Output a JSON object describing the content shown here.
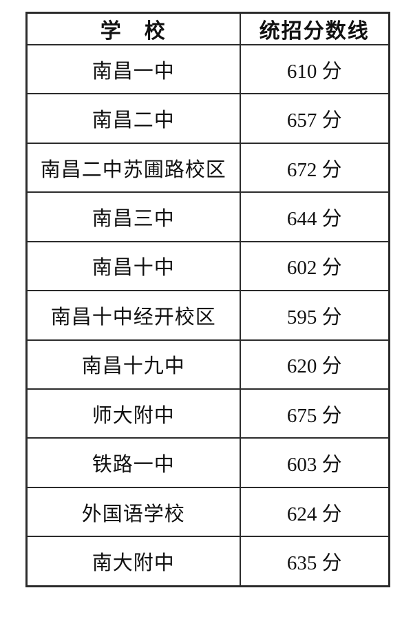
{
  "page": {
    "background_color": "#ffffff",
    "text_color": "#111111",
    "border_color": "#2b2b2b"
  },
  "chart_data": {
    "type": "table",
    "title": "",
    "columns": [
      "学　校",
      "统招分数线"
    ],
    "rows": [
      {
        "school": "南昌一中",
        "score_label": "610 分",
        "score": 610
      },
      {
        "school": "南昌二中",
        "score_label": "657 分",
        "score": 657
      },
      {
        "school": "南昌二中苏圃路校区",
        "score_label": "672 分",
        "score": 672
      },
      {
        "school": "南昌三中",
        "score_label": "644 分",
        "score": 644
      },
      {
        "school": "南昌十中",
        "score_label": "602 分",
        "score": 602
      },
      {
        "school": "南昌十中经开校区",
        "score_label": "595 分",
        "score": 595
      },
      {
        "school": "南昌十九中",
        "score_label": "620 分",
        "score": 620
      },
      {
        "school": "师大附中",
        "score_label": "675 分",
        "score": 675
      },
      {
        "school": "铁路一中",
        "score_label": "603 分",
        "score": 603
      },
      {
        "school": "外国语学校",
        "score_label": "624 分",
        "score": 624
      },
      {
        "school": "南大附中",
        "score_label": "635 分",
        "score": 635
      }
    ]
  }
}
